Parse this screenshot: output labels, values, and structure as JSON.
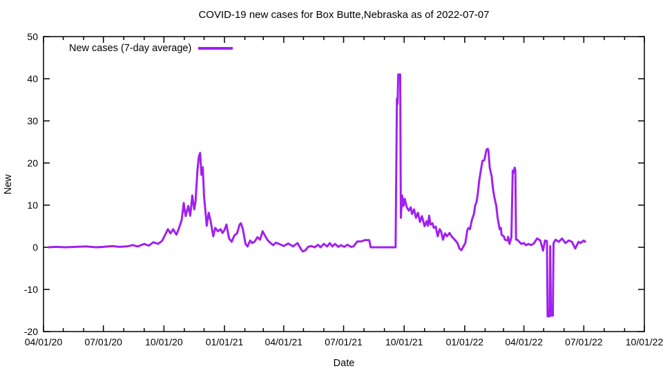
{
  "page": {
    "background": "#ffffff",
    "text_color": "#000000"
  },
  "chart_data": {
    "type": "line",
    "title": "COVID-19 new cases for Box Butte,Nebraska as of 2022-07-07",
    "xlabel": "Date",
    "ylabel": "New",
    "grid": false,
    "legend_position": "top-left-inside",
    "legend": [
      {
        "label": "New cases (7-day average)",
        "color": "#A020F0"
      }
    ],
    "ylim": [
      -20,
      50
    ],
    "y_ticks": [
      -20,
      -10,
      0,
      10,
      20,
      30,
      40,
      50
    ],
    "x_range": [
      "2020-04-01",
      "2022-10-01"
    ],
    "x_tick_labels": [
      "04/01/20",
      "07/01/20",
      "10/01/20",
      "01/01/21",
      "04/01/21",
      "07/01/21",
      "10/01/21",
      "01/01/22",
      "04/01/22",
      "07/01/22",
      "10/01/22"
    ],
    "x_minor_ticks": "monthly",
    "line_color": "#A020F0",
    "line_width": 3,
    "series": [
      {
        "name": "New cases (7-day average)",
        "color": "#A020F0",
        "points": [
          [
            "2020-04-08",
            0.0
          ],
          [
            "2020-04-20",
            0.1
          ],
          [
            "2020-05-05",
            0.0
          ],
          [
            "2020-05-20",
            0.1
          ],
          [
            "2020-06-05",
            0.2
          ],
          [
            "2020-06-20",
            0.0
          ],
          [
            "2020-07-01",
            0.1
          ],
          [
            "2020-07-15",
            0.3
          ],
          [
            "2020-07-25",
            0.1
          ],
          [
            "2020-08-05",
            0.2
          ],
          [
            "2020-08-15",
            0.5
          ],
          [
            "2020-08-22",
            0.2
          ],
          [
            "2020-09-01",
            0.8
          ],
          [
            "2020-09-08",
            0.4
          ],
          [
            "2020-09-15",
            1.2
          ],
          [
            "2020-09-22",
            0.8
          ],
          [
            "2020-09-28",
            1.5
          ],
          [
            "2020-10-03",
            3.0
          ],
          [
            "2020-10-07",
            4.3
          ],
          [
            "2020-10-11",
            3.3
          ],
          [
            "2020-10-15",
            4.3
          ],
          [
            "2020-10-20",
            3.0
          ],
          [
            "2020-10-24",
            4.6
          ],
          [
            "2020-10-28",
            6.5
          ],
          [
            "2020-10-31",
            10.5
          ],
          [
            "2020-11-03",
            7.4
          ],
          [
            "2020-11-07",
            9.8
          ],
          [
            "2020-11-10",
            7.5
          ],
          [
            "2020-11-13",
            12.3
          ],
          [
            "2020-11-16",
            9.0
          ],
          [
            "2020-11-18",
            10.8
          ],
          [
            "2020-11-21",
            18.5
          ],
          [
            "2020-11-23",
            21.5
          ],
          [
            "2020-11-25",
            22.4
          ],
          [
            "2020-11-27",
            17.2
          ],
          [
            "2020-11-29",
            19.0
          ],
          [
            "2020-12-01",
            12.0
          ],
          [
            "2020-12-03",
            8.7
          ],
          [
            "2020-12-05",
            5.1
          ],
          [
            "2020-12-08",
            8.2
          ],
          [
            "2020-12-11",
            6.2
          ],
          [
            "2020-12-15",
            2.6
          ],
          [
            "2020-12-18",
            4.6
          ],
          [
            "2020-12-22",
            3.8
          ],
          [
            "2020-12-26",
            4.3
          ],
          [
            "2020-12-29",
            3.4
          ],
          [
            "2021-01-01",
            4.1
          ],
          [
            "2021-01-04",
            5.4
          ],
          [
            "2021-01-08",
            2.1
          ],
          [
            "2021-01-12",
            1.3
          ],
          [
            "2021-01-16",
            2.8
          ],
          [
            "2021-01-20",
            3.3
          ],
          [
            "2021-01-24",
            5.4
          ],
          [
            "2021-01-26",
            5.7
          ],
          [
            "2021-01-29",
            4.3
          ],
          [
            "2021-02-02",
            0.8
          ],
          [
            "2021-02-05",
            0.2
          ],
          [
            "2021-02-09",
            1.6
          ],
          [
            "2021-02-12",
            1.0
          ],
          [
            "2021-02-16",
            1.4
          ],
          [
            "2021-02-20",
            2.4
          ],
          [
            "2021-02-24",
            1.8
          ],
          [
            "2021-02-28",
            3.8
          ],
          [
            "2021-03-04",
            2.6
          ],
          [
            "2021-03-08",
            1.6
          ],
          [
            "2021-03-12",
            1.0
          ],
          [
            "2021-03-16",
            0.5
          ],
          [
            "2021-03-20",
            1.1
          ],
          [
            "2021-03-25",
            0.8
          ],
          [
            "2021-04-01",
            0.3
          ],
          [
            "2021-04-08",
            0.9
          ],
          [
            "2021-04-15",
            0.2
          ],
          [
            "2021-04-22",
            1.0
          ],
          [
            "2021-04-27",
            -0.4
          ],
          [
            "2021-04-30",
            -1.0
          ],
          [
            "2021-05-04",
            -0.7
          ],
          [
            "2021-05-08",
            0.1
          ],
          [
            "2021-05-13",
            0.3
          ],
          [
            "2021-05-18",
            0.0
          ],
          [
            "2021-05-23",
            0.6
          ],
          [
            "2021-05-27",
            0.0
          ],
          [
            "2021-06-01",
            0.8
          ],
          [
            "2021-06-06",
            0.2
          ],
          [
            "2021-06-10",
            1.0
          ],
          [
            "2021-06-14",
            0.2
          ],
          [
            "2021-06-18",
            0.8
          ],
          [
            "2021-06-23",
            0.1
          ],
          [
            "2021-06-27",
            0.5
          ],
          [
            "2021-07-02",
            0.1
          ],
          [
            "2021-07-07",
            0.6
          ],
          [
            "2021-07-12",
            0.1
          ],
          [
            "2021-07-16",
            0.2
          ],
          [
            "2021-07-22",
            1.4
          ],
          [
            "2021-07-28",
            1.4
          ],
          [
            "2021-08-02",
            1.7
          ],
          [
            "2021-08-09",
            1.7
          ],
          [
            "2021-08-11",
            0.0
          ],
          [
            "2021-08-20",
            0.0
          ],
          [
            "2021-09-01",
            0.0
          ],
          [
            "2021-09-10",
            0.0
          ],
          [
            "2021-09-18",
            0.0
          ],
          [
            "2021-09-20",
            35.3
          ],
          [
            "2021-09-21",
            34.0
          ],
          [
            "2021-09-22",
            41.0
          ],
          [
            "2021-09-25",
            41.0
          ],
          [
            "2021-09-26",
            7.0
          ],
          [
            "2021-09-28",
            12.3
          ],
          [
            "2021-09-30",
            9.8
          ],
          [
            "2021-10-02",
            11.5
          ],
          [
            "2021-10-05",
            9.5
          ],
          [
            "2021-10-08",
            8.7
          ],
          [
            "2021-10-11",
            9.5
          ],
          [
            "2021-10-13",
            7.9
          ],
          [
            "2021-10-16",
            9.0
          ],
          [
            "2021-10-19",
            7.0
          ],
          [
            "2021-10-22",
            8.2
          ],
          [
            "2021-10-25",
            6.0
          ],
          [
            "2021-10-28",
            7.4
          ],
          [
            "2021-11-01",
            5.0
          ],
          [
            "2021-11-04",
            6.2
          ],
          [
            "2021-11-06",
            5.1
          ],
          [
            "2021-11-08",
            7.5
          ],
          [
            "2021-11-10",
            5.4
          ],
          [
            "2021-11-13",
            5.7
          ],
          [
            "2021-11-15",
            4.6
          ],
          [
            "2021-11-18",
            4.9
          ],
          [
            "2021-11-21",
            2.6
          ],
          [
            "2021-11-24",
            4.3
          ],
          [
            "2021-11-26",
            3.8
          ],
          [
            "2021-11-29",
            1.8
          ],
          [
            "2021-12-02",
            3.3
          ],
          [
            "2021-12-05",
            2.6
          ],
          [
            "2021-12-09",
            3.4
          ],
          [
            "2021-12-12",
            2.6
          ],
          [
            "2021-12-15",
            2.1
          ],
          [
            "2021-12-18",
            1.6
          ],
          [
            "2021-12-21",
            1.0
          ],
          [
            "2021-12-24",
            -0.3
          ],
          [
            "2021-12-27",
            -0.7
          ],
          [
            "2021-12-30",
            0.2
          ],
          [
            "2022-01-02",
            1.0
          ],
          [
            "2022-01-05",
            4.1
          ],
          [
            "2022-01-07",
            4.6
          ],
          [
            "2022-01-09",
            4.3
          ],
          [
            "2022-01-12",
            6.5
          ],
          [
            "2022-01-15",
            7.9
          ],
          [
            "2022-01-17",
            10.0
          ],
          [
            "2022-01-19",
            10.7
          ],
          [
            "2022-01-21",
            12.8
          ],
          [
            "2022-01-23",
            15.7
          ],
          [
            "2022-01-25",
            17.7
          ],
          [
            "2022-01-28",
            20.5
          ],
          [
            "2022-01-31",
            20.7
          ],
          [
            "2022-02-03",
            23.1
          ],
          [
            "2022-02-05",
            23.4
          ],
          [
            "2022-02-06",
            23.0
          ],
          [
            "2022-02-08",
            18.9
          ],
          [
            "2022-02-11",
            16.9
          ],
          [
            "2022-02-13",
            13.9
          ],
          [
            "2022-02-15",
            12.0
          ],
          [
            "2022-02-18",
            9.8
          ],
          [
            "2022-02-20",
            7.0
          ],
          [
            "2022-02-23",
            4.3
          ],
          [
            "2022-02-25",
            4.6
          ],
          [
            "2022-02-26",
            3.0
          ],
          [
            "2022-03-02",
            2.5
          ],
          [
            "2022-03-03",
            1.8
          ],
          [
            "2022-03-07",
            1.6
          ],
          [
            "2022-03-08",
            2.5
          ],
          [
            "2022-03-10",
            0.8
          ],
          [
            "2022-03-12",
            1.8
          ],
          [
            "2022-03-13",
            2.5
          ],
          [
            "2022-03-15",
            18.2
          ],
          [
            "2022-03-16",
            17.7
          ],
          [
            "2022-03-18",
            18.9
          ],
          [
            "2022-03-19",
            18.2
          ],
          [
            "2022-03-20",
            1.8
          ],
          [
            "2022-03-22",
            1.8
          ],
          [
            "2022-03-25",
            1.3
          ],
          [
            "2022-03-28",
            0.8
          ],
          [
            "2022-04-01",
            1.0
          ],
          [
            "2022-04-04",
            0.5
          ],
          [
            "2022-04-08",
            0.8
          ],
          [
            "2022-04-12",
            0.5
          ],
          [
            "2022-04-16",
            0.9
          ],
          [
            "2022-04-21",
            2.1
          ],
          [
            "2022-04-26",
            1.6
          ],
          [
            "2022-04-30",
            -0.8
          ],
          [
            "2022-05-03",
            1.6
          ],
          [
            "2022-05-06",
            1.5
          ],
          [
            "2022-05-07",
            -16.4
          ],
          [
            "2022-05-10",
            -16.4
          ],
          [
            "2022-05-11",
            0.3
          ],
          [
            "2022-05-12",
            -16.2
          ],
          [
            "2022-05-15",
            -16.2
          ],
          [
            "2022-05-16",
            1.0
          ],
          [
            "2022-05-19",
            1.8
          ],
          [
            "2022-05-24",
            1.3
          ],
          [
            "2022-05-29",
            2.1
          ],
          [
            "2022-06-03",
            1.0
          ],
          [
            "2022-06-08",
            1.6
          ],
          [
            "2022-06-13",
            1.3
          ],
          [
            "2022-06-18",
            -0.3
          ],
          [
            "2022-06-23",
            1.3
          ],
          [
            "2022-06-26",
            1.0
          ],
          [
            "2022-07-01",
            1.6
          ],
          [
            "2022-07-04",
            1.2
          ]
        ]
      }
    ]
  }
}
